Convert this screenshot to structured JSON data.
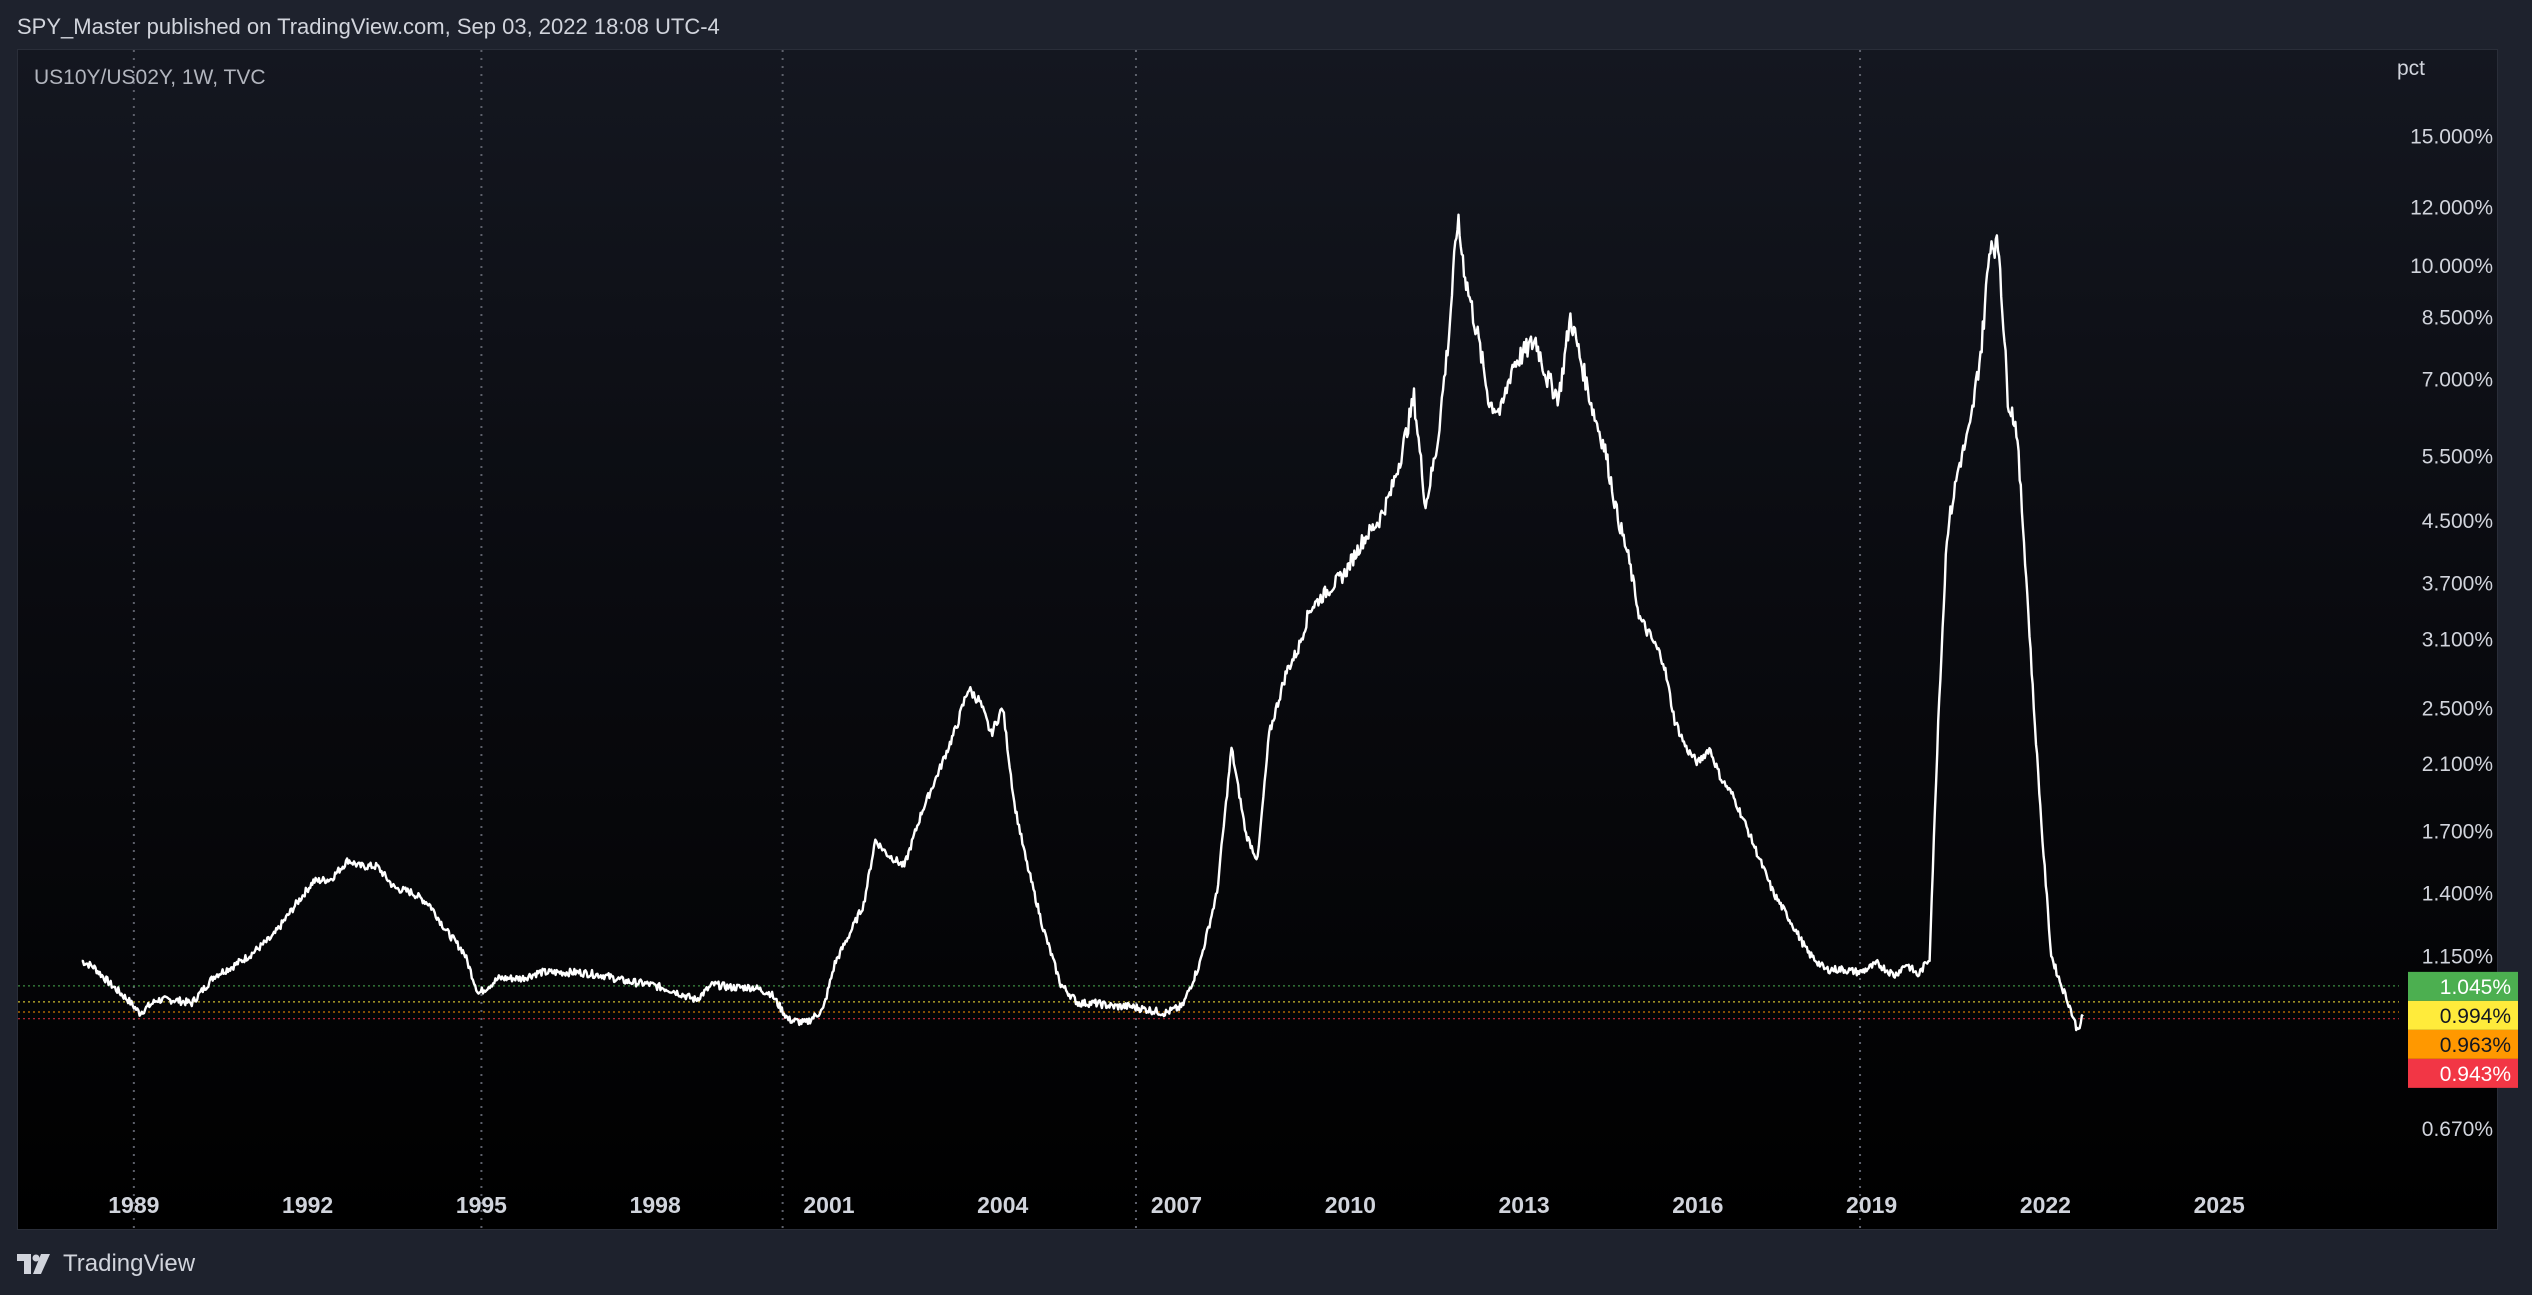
{
  "header": {
    "published": "SPY_Master published on TradingView.com, Sep 03, 2022 18:08 UTC-4"
  },
  "chart": {
    "symbol_label": "US10Y/US02Y, 1W, TVC"
  },
  "footer": {
    "logo_text": "TradingView"
  },
  "colors": {
    "background": "#000000",
    "line": "#ffffff",
    "axis_text": "#d1d4dc",
    "grid_vertical": "#5d606b",
    "level_green": "#4caf50",
    "level_yellow": "#ffeb3b",
    "level_orange": "#ff9800",
    "level_red": "#f23645"
  },
  "chart_data": {
    "type": "line",
    "title": "US10Y/US02Y, 1W, TVC",
    "y_scale": "log",
    "y_unit_label": "pct",
    "ylim": [
      0.6,
      16.5
    ],
    "xlim": [
      1987.0,
      2027.5
    ],
    "x_tick_labels": [
      "1989",
      "1992",
      "1995",
      "1998",
      "2001",
      "2004",
      "2007",
      "2010",
      "2013",
      "2016",
      "2019",
      "2022",
      "2025"
    ],
    "x_tick_values": [
      1989,
      1992,
      1995,
      1998,
      2001,
      2004,
      2007,
      2010,
      2013,
      2016,
      2019,
      2022,
      2025
    ],
    "y_tick_labels": [
      "15.000%",
      "12.000%",
      "10.000%",
      "8.500%",
      "7.000%",
      "5.500%",
      "4.500%",
      "3.700%",
      "3.100%",
      "2.500%",
      "2.100%",
      "1.700%",
      "1.400%",
      "1.150%",
      "0.670%"
    ],
    "y_tick_values": [
      15.0,
      12.0,
      10.0,
      8.5,
      7.0,
      5.5,
      4.5,
      3.7,
      3.1,
      2.5,
      2.1,
      1.7,
      1.4,
      1.15,
      0.67
    ],
    "vertical_lines": [
      1989.0,
      1995.0,
      2000.2,
      2006.3,
      2018.8
    ],
    "levels": [
      {
        "value": 1.045,
        "label": "1.045%",
        "color": "#4caf50",
        "text_color": "#ffffff"
      },
      {
        "value": 0.994,
        "label": "0.994%",
        "color": "#ffeb3b",
        "text_color": "#131722"
      },
      {
        "value": 0.963,
        "label": "0.963%",
        "color": "#ff9800",
        "text_color": "#131722"
      },
      {
        "value": 0.943,
        "label": "0.943%",
        "color": "#f23645",
        "text_color": "#ffffff"
      }
    ],
    "series": [
      {
        "x": [
          1988.1,
          1988.3,
          1988.6,
          1988.9,
          1989.1,
          1989.4,
          1989.7,
          1990.0,
          1990.4,
          1990.7,
          1991.0,
          1991.4,
          1991.8,
          1992.1,
          1992.4,
          1992.7,
          1992.9,
          1993.2,
          1993.5,
          1993.8,
          1994.1,
          1994.4,
          1994.7,
          1994.95,
          1995.3,
          1995.7,
          1996.0,
          1996.3,
          1996.7,
          1997.1,
          1997.5,
          1997.9,
          1998.3,
          1998.7,
          1999.0,
          1999.3,
          1999.7,
          2000.0,
          2000.3,
          2000.6,
          2000.9,
          2001.1,
          2001.4,
          2001.6,
          2001.8,
          2002.0,
          2002.3,
          2002.6,
          2002.9,
          2003.2,
          2003.4,
          2003.6,
          2003.8,
          2004.0,
          2004.2,
          2004.4,
          2004.7,
          2005.0,
          2005.3,
          2005.6,
          2005.9,
          2006.2,
          2006.5,
          2006.8,
          2007.1,
          2007.4,
          2007.7,
          2007.95,
          2008.2,
          2008.4,
          2008.6,
          2008.9,
          2009.1,
          2009.3,
          2009.6,
          2009.9,
          2010.2,
          2010.5,
          2010.7,
          2010.9,
          2011.1,
          2011.3,
          2011.5,
          2011.7,
          2011.85,
          2012.0,
          2012.2,
          2012.4,
          2012.6,
          2012.8,
          2013.0,
          2013.2,
          2013.4,
          2013.6,
          2013.8,
          2014.0,
          2014.2,
          2014.4,
          2014.6,
          2014.8,
          2015.0,
          2015.2,
          2015.4,
          2015.6,
          2015.8,
          2016.0,
          2016.2,
          2016.4,
          2016.6,
          2016.8,
          2017.0,
          2017.3,
          2017.6,
          2017.9,
          2018.2,
          2018.5,
          2018.8,
          2019.1,
          2019.4,
          2019.6,
          2019.8,
          2020.0,
          2020.15,
          2020.3,
          2020.5,
          2020.7,
          2020.9,
          2021.05,
          2021.2,
          2021.35,
          2021.5,
          2021.65,
          2021.8,
          2021.95,
          2022.1,
          2022.25,
          2022.4,
          2022.55,
          2022.65
        ],
        "values": [
          1.13,
          1.11,
          1.05,
          1.0,
          0.96,
          1.0,
          1.0,
          0.99,
          1.08,
          1.11,
          1.15,
          1.22,
          1.35,
          1.45,
          1.46,
          1.55,
          1.52,
          1.52,
          1.42,
          1.4,
          1.35,
          1.24,
          1.16,
          1.02,
          1.07,
          1.07,
          1.09,
          1.09,
          1.09,
          1.08,
          1.06,
          1.05,
          1.03,
          1.0,
          1.05,
          1.04,
          1.04,
          1.02,
          0.94,
          0.93,
          0.97,
          1.12,
          1.25,
          1.35,
          1.65,
          1.58,
          1.52,
          1.8,
          2.05,
          2.35,
          2.65,
          2.55,
          2.3,
          2.5,
          1.85,
          1.55,
          1.25,
          1.05,
          0.99,
          0.99,
          0.98,
          0.98,
          0.97,
          0.96,
          0.98,
          1.12,
          1.4,
          2.2,
          1.68,
          1.55,
          2.3,
          2.8,
          3.0,
          3.4,
          3.6,
          3.8,
          4.2,
          4.5,
          4.9,
          5.6,
          6.6,
          4.7,
          5.7,
          8.0,
          11.5,
          9.5,
          8.0,
          6.5,
          6.3,
          7.3,
          7.6,
          7.9,
          7.0,
          6.6,
          8.5,
          7.3,
          6.3,
          5.6,
          4.6,
          4.0,
          3.3,
          3.1,
          2.9,
          2.4,
          2.2,
          2.1,
          2.2,
          2.0,
          1.9,
          1.75,
          1.6,
          1.4,
          1.28,
          1.16,
          1.1,
          1.1,
          1.09,
          1.12,
          1.08,
          1.12,
          1.08,
          1.14,
          2.4,
          4.3,
          5.3,
          6.0,
          7.8,
          10.8,
          10.5,
          6.6,
          6.0,
          4.0,
          2.5,
          1.65,
          1.15,
          1.06,
          0.99,
          0.91,
          0.95
        ]
      }
    ]
  }
}
